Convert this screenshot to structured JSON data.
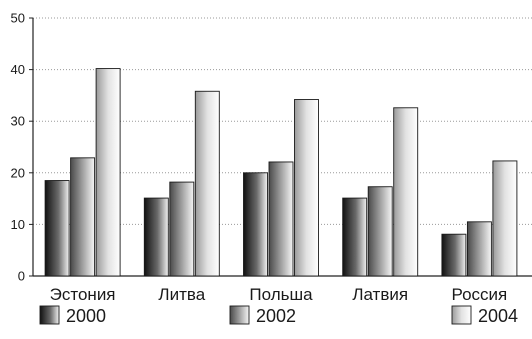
{
  "chart_data": {
    "type": "bar",
    "categories": [
      "Эстония",
      "Литва",
      "Польша",
      "Латвия",
      "Россия"
    ],
    "series": [
      {
        "name": "2000",
        "values": [
          18.5,
          15.1,
          20.0,
          15.1,
          8.1
        ]
      },
      {
        "name": "2002",
        "values": [
          22.9,
          18.2,
          22.1,
          17.3,
          10.5
        ]
      },
      {
        "name": "2004",
        "values": [
          40.2,
          35.8,
          34.2,
          32.6,
          22.3
        ]
      }
    ],
    "yticks": [
      "0",
      "10",
      "20",
      "30",
      "40",
      "50"
    ],
    "ylim": [
      0,
      50
    ],
    "grid": true,
    "legend_position": "bottom",
    "colors": [
      "#2a2a2a",
      "#8a8a8a",
      "#dedede"
    ]
  }
}
